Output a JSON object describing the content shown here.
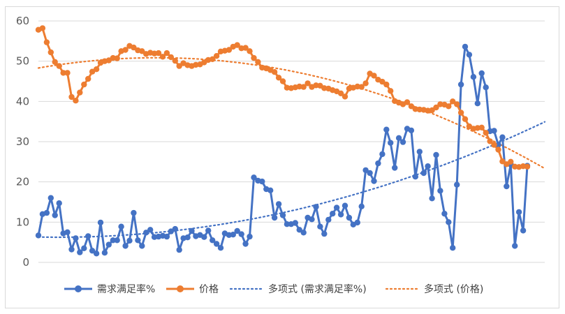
{
  "chart_data": {
    "type": "line",
    "yaxis": {
      "ylim": [
        0,
        60
      ],
      "ticks": [
        "0",
        "10",
        "20",
        "30",
        "40",
        "50",
        "60"
      ]
    },
    "grid": true,
    "legend_position": "bottom",
    "colors": {
      "demand": "#4472C4",
      "price": "#ED7D31",
      "grid": "#d9d9d9",
      "axis_text": "#595959"
    },
    "series": [
      {
        "name": "需求满足率%",
        "color": "#4472C4",
        "values": [
          6.7,
          12,
          12.3,
          16,
          11.7,
          14.7,
          7.2,
          7.5,
          3.2,
          6,
          2.5,
          3.5,
          6.5,
          2.9,
          2.2,
          9.9,
          2.4,
          4.4,
          5.5,
          5.5,
          8.9,
          4.1,
          5.4,
          12.3,
          5.5,
          4.1,
          7.4,
          8.1,
          6.3,
          6.4,
          6.6,
          6.4,
          7.7,
          8.3,
          3.1,
          6,
          6.2,
          7.8,
          6.5,
          6.8,
          6.3,
          7.9,
          5.5,
          4.6,
          3.6,
          7.2,
          6.8,
          6.9,
          7.8,
          7,
          4.6,
          6.4,
          21.1,
          20.3,
          20.1,
          18.2,
          17.9,
          11.1,
          14.5,
          11.7,
          9.5,
          9.5,
          9.8,
          8.1,
          7.4,
          11.1,
          10.7,
          13.8,
          8.9,
          7.1,
          10.6,
          12.1,
          13.6,
          11.9,
          14.1,
          11.1,
          9.4,
          9.9,
          13.9,
          22.9,
          22.2,
          20.2,
          24.6,
          26.9,
          33,
          29.7,
          23.5,
          30.9,
          29.9,
          33.2,
          32.8,
          21.3,
          27.5,
          22.2,
          23.9,
          15.9,
          26.7,
          17.8,
          12.1,
          10,
          3.6,
          19.3,
          44.2,
          53.6,
          51.6,
          46.1,
          39.5,
          47,
          43.5,
          32.6,
          32.7,
          29.2,
          31.1,
          18.9,
          24.3,
          4.1,
          12.5,
          7.9,
          24
        ]
      },
      {
        "name": "价格",
        "color": "#ED7D31",
        "values": [
          57.8,
          58.2,
          54.7,
          52.2,
          49.8,
          48.8,
          47.1,
          47.1,
          41.1,
          40.2,
          42.2,
          44.2,
          45.6,
          47.4,
          48,
          49.6,
          50,
          50.2,
          50.8,
          50.7,
          52.5,
          52.8,
          53.8,
          53.4,
          52.7,
          52.5,
          51.8,
          52.1,
          51.9,
          52,
          51.1,
          52,
          51,
          50.1,
          48.8,
          49.5,
          49,
          48.8,
          49.1,
          49.2,
          49.7,
          50.3,
          50.5,
          51.3,
          52.4,
          52.6,
          52.8,
          53.6,
          54,
          53.2,
          53.3,
          52.5,
          50.8,
          49.8,
          48.4,
          48.2,
          47.8,
          47.3,
          45.9,
          45,
          43.4,
          43.3,
          43.5,
          43.7,
          43.6,
          44.5,
          43.6,
          44,
          43.9,
          43.3,
          43.2,
          42.8,
          42.5,
          42,
          41.2,
          43.2,
          43.4,
          43.7,
          43.6,
          44.5,
          46.9,
          46.4,
          45.4,
          44.9,
          44.2,
          42.6,
          40.1,
          39.7,
          39.3,
          39.8,
          38.8,
          38.1,
          38,
          37.9,
          37.7,
          37.8,
          38.5,
          39.3,
          39.2,
          38.8,
          40,
          39.3,
          37.2,
          35.6,
          33.8,
          33.2,
          33.4,
          33.5,
          32.2,
          30.1,
          29.2,
          28,
          25.1,
          24.4,
          25,
          23.8,
          23.7,
          23.9,
          23.8
        ]
      },
      {
        "name": "多项式 (需求满足率%)",
        "color": "#4472C4",
        "trendline": true,
        "degree": 2
      },
      {
        "name": "多项式 (价格)",
        "color": "#ED7D31",
        "trendline": true,
        "degree": 2
      }
    ]
  }
}
